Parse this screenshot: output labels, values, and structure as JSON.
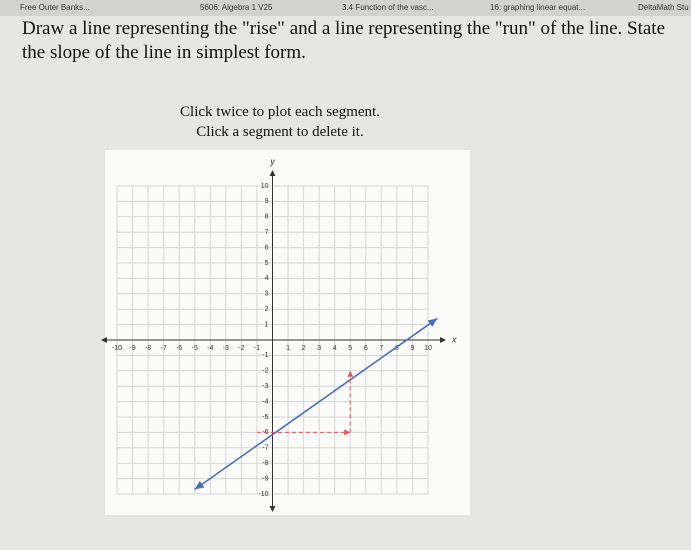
{
  "tabs": [
    "Free Outer Banks...",
    "5606: Algebra 1 V25",
    "3.4 Function of the vasc...",
    "16: graphing linear equat...",
    "DeltaMath Stu"
  ],
  "question": [
    "Draw a line representing the \"rise\" and a line representing the \"run\" of the line. State",
    "the slope of the line in simplest form."
  ],
  "instructions": [
    "Click twice to plot each segment.",
    "Click a segment to delete it."
  ],
  "graph": {
    "xlabel": "x",
    "ylabel": "y",
    "xlim": [
      -10,
      10
    ],
    "ylim": [
      -10,
      10
    ],
    "xticks": [
      -10,
      -9,
      -8,
      -7,
      -6,
      -5,
      -4,
      -3,
      -2,
      -1,
      1,
      2,
      3,
      4,
      5,
      6,
      7,
      8,
      9,
      10
    ],
    "yticks": [
      -10,
      -9,
      -8,
      -7,
      -6,
      -5,
      -4,
      -3,
      -2,
      -1,
      1,
      2,
      3,
      4,
      5,
      6,
      7,
      8,
      9,
      10
    ],
    "line": {
      "x": [
        -5,
        10.6
      ],
      "y": [
        -9.7,
        1.4
      ],
      "color": "#4a6fb5"
    },
    "segments": [
      {
        "x": [
          -1,
          5
        ],
        "y": [
          -6,
          -6
        ],
        "color": "#e0575a"
      },
      {
        "x": [
          5,
          5
        ],
        "y": [
          -6,
          -2
        ],
        "color": "#e0575a"
      }
    ]
  }
}
